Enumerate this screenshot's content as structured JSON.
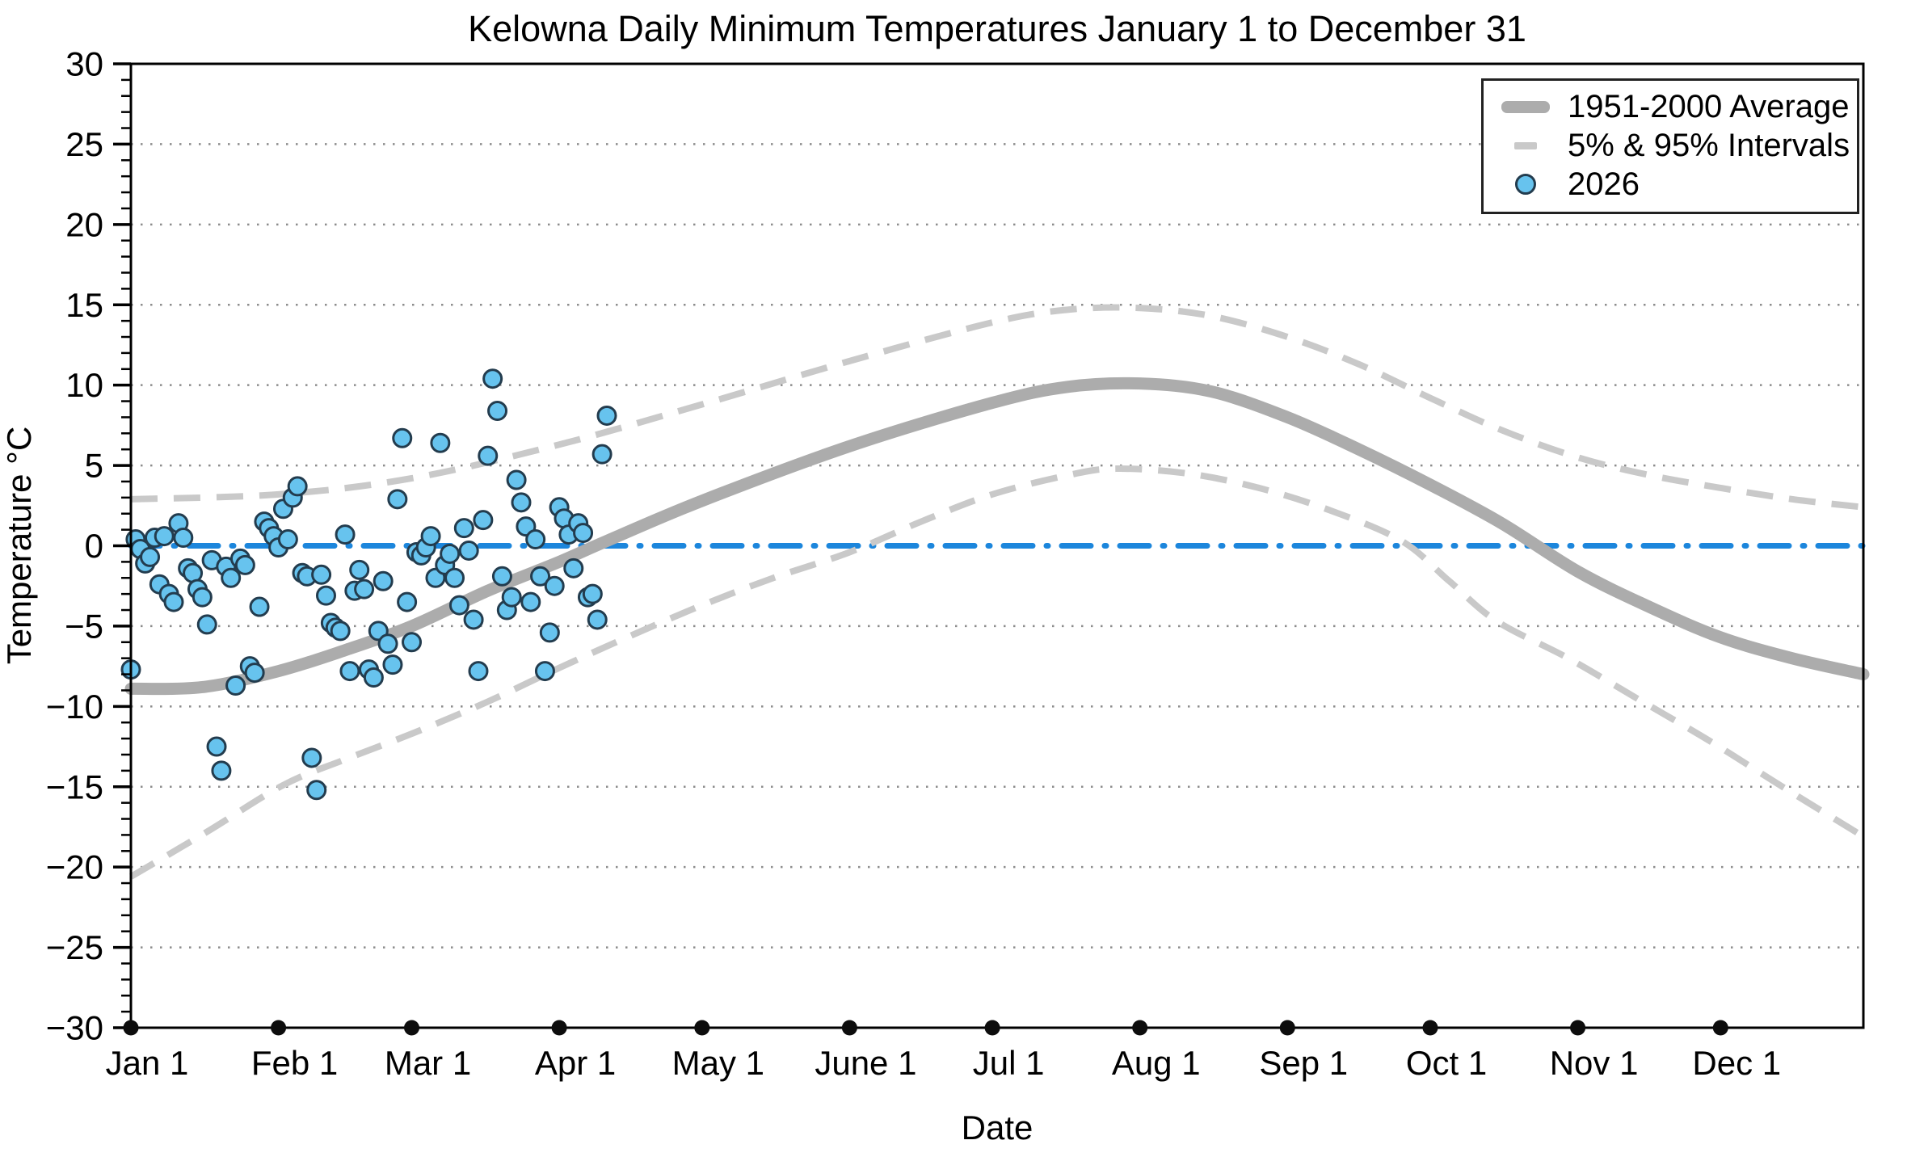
{
  "chart_data": {
    "type": "scatter",
    "title": "Kelowna Daily Minimum Temperatures January 1 to December 31",
    "xlabel": "Date",
    "ylabel": "Temperature °C",
    "ylim": [
      -30,
      30
    ],
    "y_major_tick_step": 5,
    "y_minor_tick_step": 1,
    "x_range_days": [
      1,
      365
    ],
    "grid": "horizontal dotted lines every 5 degrees",
    "legend_position": "top-right",
    "colors": {
      "average_line": "#acacac",
      "interval_line": "#c9c9c9",
      "zero_line": "#1c86dc",
      "scatter_fill": "#67c3ee",
      "scatter_edge": "#233c4e",
      "gridline": "#8c8c8c",
      "axis": "#000000"
    },
    "y_ticks": [
      30,
      25,
      20,
      15,
      10,
      5,
      0,
      -5,
      -10,
      -15,
      -20,
      -25,
      -30
    ],
    "months": [
      {
        "label": "Jan 1",
        "day": 1
      },
      {
        "label": "Feb 1",
        "day": 32
      },
      {
        "label": "Mar 1",
        "day": 60
      },
      {
        "label": "Apr 1",
        "day": 91
      },
      {
        "label": "May 1",
        "day": 121
      },
      {
        "label": "June 1",
        "day": 152
      },
      {
        "label": "Jul 1",
        "day": 182
      },
      {
        "label": "Aug 1",
        "day": 213
      },
      {
        "label": "Sep 1",
        "day": 244
      },
      {
        "label": "Oct 1",
        "day": 274
      },
      {
        "label": "Nov 1",
        "day": 305
      },
      {
        "label": "Dec 1",
        "day": 335
      }
    ],
    "zero_reference_line": {
      "value": 0,
      "style": "dash-dot",
      "color": "#1c86dc"
    },
    "legend": [
      {
        "label": "1951-2000 Average",
        "swatch": "thick-gray-line"
      },
      {
        "label": "5% & 95% Intervals",
        "swatch": "dashed-gray-line"
      },
      {
        "label": "2026",
        "swatch": "blue-point"
      }
    ],
    "series": [
      {
        "name": "1951-2000 Average",
        "style": "thick-solid",
        "points": [
          [
            1,
            -8.9
          ],
          [
            16,
            -8.8
          ],
          [
            32,
            -7.8
          ],
          [
            46,
            -6.5
          ],
          [
            60,
            -5.0
          ],
          [
            76,
            -2.8
          ],
          [
            91,
            -1.0
          ],
          [
            101,
            0.3
          ],
          [
            121,
            2.8
          ],
          [
            152,
            6.2
          ],
          [
            182,
            8.9
          ],
          [
            198,
            9.9
          ],
          [
            213,
            10.1
          ],
          [
            228,
            9.6
          ],
          [
            244,
            8.0
          ],
          [
            259,
            6.0
          ],
          [
            274,
            3.8
          ],
          [
            289,
            1.4
          ],
          [
            305,
            -1.6
          ],
          [
            320,
            -3.8
          ],
          [
            335,
            -5.7
          ],
          [
            350,
            -7.0
          ],
          [
            365,
            -8.0
          ]
        ]
      },
      {
        "name": "95% Interval",
        "style": "dashed",
        "points": [
          [
            1,
            2.9
          ],
          [
            32,
            3.2
          ],
          [
            60,
            4.2
          ],
          [
            91,
            6.3
          ],
          [
            121,
            8.8
          ],
          [
            152,
            11.5
          ],
          [
            182,
            13.9
          ],
          [
            198,
            14.7
          ],
          [
            213,
            14.8
          ],
          [
            228,
            14.3
          ],
          [
            244,
            13.0
          ],
          [
            259,
            11.3
          ],
          [
            274,
            9.2
          ],
          [
            289,
            7.2
          ],
          [
            305,
            5.5
          ],
          [
            320,
            4.4
          ],
          [
            335,
            3.6
          ],
          [
            350,
            2.9
          ],
          [
            365,
            2.4
          ]
        ]
      },
      {
        "name": "5% Interval",
        "style": "dashed",
        "points": [
          [
            1,
            -20.6
          ],
          [
            17,
            -17.8
          ],
          [
            33,
            -14.9
          ],
          [
            46,
            -13.3
          ],
          [
            60,
            -11.7
          ],
          [
            76,
            -9.7
          ],
          [
            91,
            -7.6
          ],
          [
            106,
            -5.6
          ],
          [
            121,
            -3.7
          ],
          [
            136,
            -2.0
          ],
          [
            152,
            -0.4
          ],
          [
            167,
            1.5
          ],
          [
            182,
            3.2
          ],
          [
            198,
            4.4
          ],
          [
            208,
            4.8
          ],
          [
            223,
            4.5
          ],
          [
            238,
            3.6
          ],
          [
            253,
            2.2
          ],
          [
            268,
            0.3
          ],
          [
            278,
            -2.2
          ],
          [
            288,
            -4.7
          ],
          [
            303,
            -7.0
          ],
          [
            318,
            -9.6
          ],
          [
            333,
            -12.2
          ],
          [
            348,
            -15.0
          ],
          [
            365,
            -18.1
          ]
        ]
      }
    ],
    "scatter_2026": {
      "name": "2026",
      "points_day_temp": [
        [
          1,
          -7.7
        ],
        [
          2,
          0.4
        ],
        [
          3,
          -0.2
        ],
        [
          4,
          -1.1
        ],
        [
          5,
          -0.7
        ],
        [
          6,
          0.5
        ],
        [
          7,
          -2.4
        ],
        [
          8,
          0.6
        ],
        [
          9,
          -3.0
        ],
        [
          10,
          -3.5
        ],
        [
          11,
          1.4
        ],
        [
          12,
          0.5
        ],
        [
          13,
          -1.4
        ],
        [
          14,
          -1.7
        ],
        [
          15,
          -2.7
        ],
        [
          16,
          -3.2
        ],
        [
          17,
          -4.9
        ],
        [
          18,
          -0.9
        ],
        [
          19,
          -12.5
        ],
        [
          20,
          -14.0
        ],
        [
          21,
          -1.3
        ],
        [
          22,
          -2.0
        ],
        [
          23,
          -8.7
        ],
        [
          24,
          -0.8
        ],
        [
          25,
          -1.2
        ],
        [
          26,
          -7.5
        ],
        [
          27,
          -7.9
        ],
        [
          28,
          -3.8
        ],
        [
          29,
          1.5
        ],
        [
          30,
          1.1
        ],
        [
          31,
          0.6
        ],
        [
          32,
          -0.1
        ],
        [
          33,
          2.3
        ],
        [
          34,
          0.4
        ],
        [
          35,
          3.0
        ],
        [
          36,
          3.7
        ],
        [
          37,
          -1.7
        ],
        [
          38,
          -1.9
        ],
        [
          39,
          -13.2
        ],
        [
          40,
          -15.2
        ],
        [
          41,
          -1.8
        ],
        [
          42,
          -3.1
        ],
        [
          43,
          -4.8
        ],
        [
          44,
          -5.1
        ],
        [
          45,
          -5.3
        ],
        [
          46,
          0.7
        ],
        [
          47,
          -7.8
        ],
        [
          48,
          -2.8
        ],
        [
          49,
          -1.5
        ],
        [
          50,
          -2.7
        ],
        [
          51,
          -7.7
        ],
        [
          52,
          -8.2
        ],
        [
          53,
          -5.3
        ],
        [
          54,
          -2.2
        ],
        [
          55,
          -6.1
        ],
        [
          56,
          -7.4
        ],
        [
          57,
          2.9
        ],
        [
          58,
          6.7
        ],
        [
          59,
          -3.5
        ],
        [
          60,
          -6.0
        ],
        [
          61,
          -0.4
        ],
        [
          62,
          -0.6
        ],
        [
          63,
          -0.1
        ],
        [
          64,
          0.6
        ],
        [
          65,
          -2.0
        ],
        [
          66,
          6.4
        ],
        [
          67,
          -1.2
        ],
        [
          68,
          -0.5
        ],
        [
          69,
          -2.0
        ],
        [
          70,
          -3.7
        ],
        [
          71,
          1.1
        ],
        [
          72,
          -0.3
        ],
        [
          73,
          -4.6
        ],
        [
          74,
          -7.8
        ],
        [
          75,
          1.6
        ],
        [
          76,
          5.6
        ],
        [
          77,
          10.4
        ],
        [
          78,
          8.4
        ],
        [
          79,
          -1.9
        ],
        [
          80,
          -4.0
        ],
        [
          81,
          -3.2
        ],
        [
          82,
          4.1
        ],
        [
          83,
          2.7
        ],
        [
          84,
          1.2
        ],
        [
          85,
          -3.5
        ],
        [
          86,
          0.4
        ],
        [
          87,
          -1.9
        ],
        [
          88,
          -7.8
        ],
        [
          89,
          -5.4
        ],
        [
          90,
          -2.5
        ],
        [
          91,
          2.4
        ],
        [
          92,
          1.7
        ],
        [
          93,
          0.7
        ],
        [
          94,
          -1.4
        ],
        [
          95,
          1.4
        ],
        [
          96,
          0.8
        ],
        [
          97,
          -3.2
        ],
        [
          98,
          -3.0
        ],
        [
          99,
          -4.6
        ],
        [
          100,
          5.7
        ],
        [
          101,
          8.1
        ]
      ]
    }
  }
}
